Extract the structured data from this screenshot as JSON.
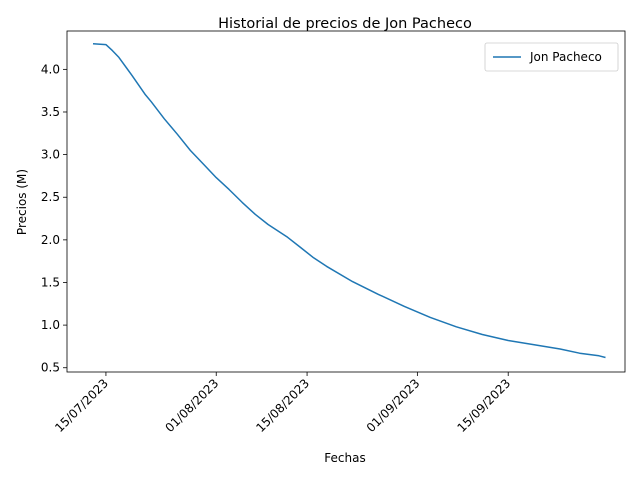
{
  "chart_data": {
    "type": "line",
    "title": "Historial de precios de Jon Pacheco",
    "xlabel": "Fechas",
    "ylabel": "Precios (M)",
    "x_ticks": [
      "15/07/2023",
      "01/08/2023",
      "15/08/2023",
      "01/09/2023",
      "15/09/2023"
    ],
    "y_ticks": [
      "0.5",
      "1.0",
      "1.5",
      "2.0",
      "2.5",
      "3.0",
      "3.5",
      "4.0"
    ],
    "xlim": [
      "2023-07-09",
      "2023-10-03"
    ],
    "ylim": [
      0.45,
      4.45
    ],
    "grid": false,
    "legend_position": "top-right",
    "series": [
      {
        "name": "Jon Pacheco",
        "color": "#1f77b4",
        "points": [
          {
            "x": "2023-07-13",
            "y": 4.3
          },
          {
            "x": "2023-07-15",
            "y": 4.29
          },
          {
            "x": "2023-07-16",
            "y": 4.22
          },
          {
            "x": "2023-07-17",
            "y": 4.14
          },
          {
            "x": "2023-07-19",
            "y": 3.93
          },
          {
            "x": "2023-07-21",
            "y": 3.71
          },
          {
            "x": "2023-07-22",
            "y": 3.62
          },
          {
            "x": "2023-07-24",
            "y": 3.42
          },
          {
            "x": "2023-07-26",
            "y": 3.24
          },
          {
            "x": "2023-07-28",
            "y": 3.05
          },
          {
            "x": "2023-07-30",
            "y": 2.89
          },
          {
            "x": "2023-08-01",
            "y": 2.73
          },
          {
            "x": "2023-08-03",
            "y": 2.59
          },
          {
            "x": "2023-08-05",
            "y": 2.44
          },
          {
            "x": "2023-08-07",
            "y": 2.3
          },
          {
            "x": "2023-08-09",
            "y": 2.18
          },
          {
            "x": "2023-08-12",
            "y": 2.03
          },
          {
            "x": "2023-08-14",
            "y": 1.91
          },
          {
            "x": "2023-08-16",
            "y": 1.79
          },
          {
            "x": "2023-08-18",
            "y": 1.69
          },
          {
            "x": "2023-08-22",
            "y": 1.51
          },
          {
            "x": "2023-08-26",
            "y": 1.36
          },
          {
            "x": "2023-08-30",
            "y": 1.22
          },
          {
            "x": "2023-09-03",
            "y": 1.09
          },
          {
            "x": "2023-09-07",
            "y": 0.98
          },
          {
            "x": "2023-09-11",
            "y": 0.89
          },
          {
            "x": "2023-09-15",
            "y": 0.82
          },
          {
            "x": "2023-09-19",
            "y": 0.77
          },
          {
            "x": "2023-09-23",
            "y": 0.72
          },
          {
            "x": "2023-09-26",
            "y": 0.67
          },
          {
            "x": "2023-09-29",
            "y": 0.64
          },
          {
            "x": "2023-09-30",
            "y": 0.62
          }
        ]
      }
    ]
  }
}
